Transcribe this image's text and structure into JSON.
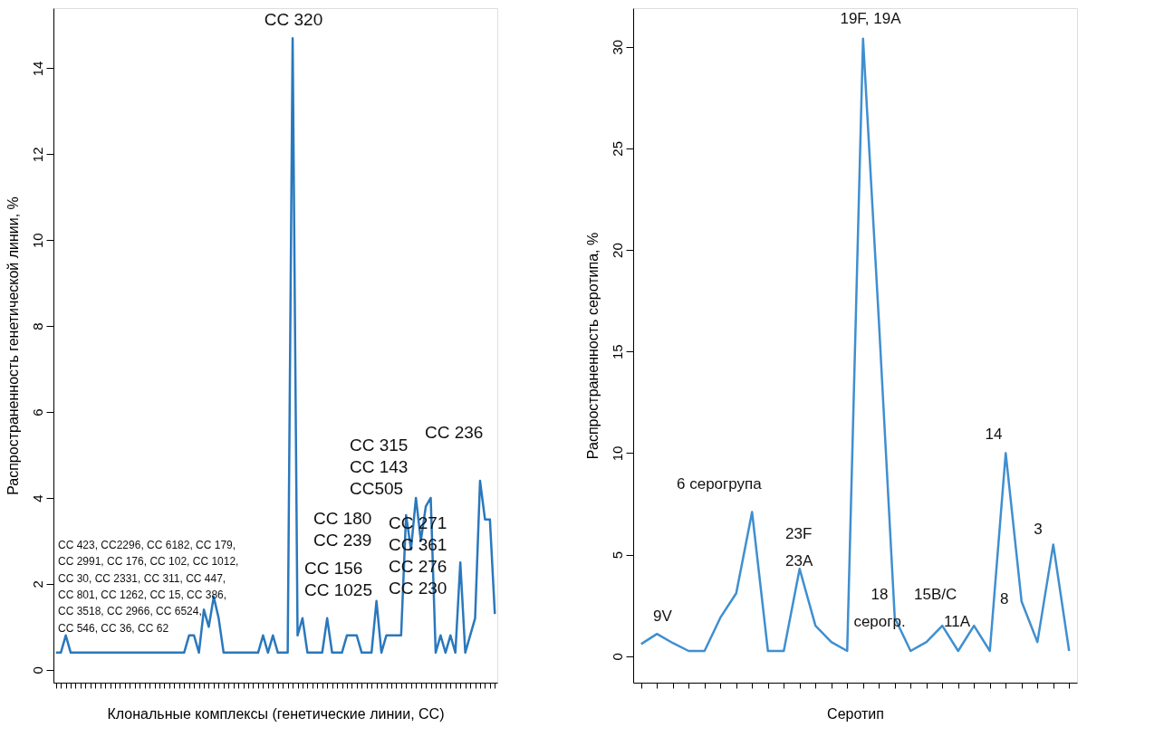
{
  "chart_data": [
    {
      "type": "line",
      "xlabel": "Клональные комплексы (генетические линии, СС)",
      "ylabel": "Распространенность генетической линии, %",
      "categories": [
        null,
        null,
        null,
        null,
        null,
        null,
        null,
        null,
        null,
        null,
        null,
        null,
        null,
        null,
        null,
        null,
        null,
        null,
        null,
        null,
        null,
        null,
        null,
        null,
        null,
        null,
        null,
        null,
        null,
        null,
        null,
        null,
        null,
        null,
        null,
        null,
        null,
        null,
        null,
        null,
        null,
        null,
        null,
        null,
        null,
        null,
        null,
        null,
        null,
        null,
        null,
        null,
        null,
        null,
        null,
        null,
        null,
        null,
        null,
        null,
        null,
        null,
        null,
        null,
        null,
        null,
        null,
        null,
        null,
        null,
        null,
        null,
        null,
        null,
        null,
        null,
        null,
        null,
        null,
        null,
        null,
        null,
        null,
        null,
        null,
        null,
        null,
        null,
        null,
        null
      ],
      "series": [
        {
          "color": "#2a78bd",
          "values": [
            0.4,
            0.4,
            0.8,
            0.4,
            0.4,
            0.4,
            0.4,
            0.4,
            0.4,
            0.4,
            0.4,
            0.4,
            0.4,
            0.4,
            0.4,
            0.4,
            0.4,
            0.4,
            0.4,
            0.4,
            0.4,
            0.4,
            0.4,
            0.4,
            0.4,
            0.4,
            0.4,
            0.8,
            0.8,
            0.4,
            1.4,
            1.0,
            1.7,
            1.2,
            0.4,
            0.4,
            0.4,
            0.4,
            0.4,
            0.4,
            0.4,
            0.4,
            0.8,
            0.4,
            0.8,
            0.4,
            0.4,
            0.4,
            14.7,
            0.8,
            1.2,
            0.4,
            0.4,
            0.4,
            0.4,
            1.2,
            0.4,
            0.4,
            0.4,
            0.8,
            0.8,
            0.8,
            0.4,
            0.4,
            0.4,
            1.6,
            0.4,
            0.8,
            0.8,
            0.8,
            0.8,
            3.6,
            2.8,
            4.0,
            3.0,
            3.8,
            4.0,
            0.4,
            0.8,
            0.4,
            0.8,
            0.4,
            2.5,
            0.4,
            0.8,
            1.2,
            4.4,
            3.5,
            3.5,
            1.3
          ]
        }
      ],
      "ylim": [
        -0.3,
        15.4
      ],
      "yticks": [
        0,
        2,
        4,
        6,
        8,
        10,
        12,
        14
      ],
      "tick_labels": "y",
      "grid": false,
      "annotations": [
        "CC 320",
        "CC 315\nCC 143\nCC505",
        "CC 236",
        "CC 180\nCC 239",
        "CC 156\nCC 1025",
        "CC 271\nCC 361\nCC 276\nCC 230",
        "CC 423, CC2296, CC 6182, CC 179,\nCC 2991, CC 176, CC 102, CC 1012,\nCC 30, CC 2331, CC 311, CC 447,\nCC 801, CC 1262, CC 15, CC 386,\nCC 3518, CC 2966, CC 6524,\nCC 546, CC 36, CC 62"
      ]
    },
    {
      "type": "line",
      "xlabel": "Серотип",
      "ylabel": "Распространенность серотипа, %",
      "categories": [
        null,
        null,
        null,
        null,
        null,
        null,
        null,
        null,
        null,
        null,
        null,
        null,
        null,
        null,
        null,
        null,
        null,
        null,
        null,
        null,
        null,
        null,
        null,
        null,
        null,
        null,
        null,
        null
      ],
      "series": [
        {
          "color": "#3f8fd0",
          "values": [
            0.6,
            1.1,
            0.65,
            0.26,
            0.26,
            1.9,
            3.1,
            7.1,
            0.26,
            0.26,
            4.3,
            1.5,
            0.7,
            0.26,
            30.4,
            16.5,
            1.9,
            0.26,
            0.7,
            1.5,
            0.26,
            1.5,
            0.26,
            10.0,
            2.7,
            0.7,
            5.5,
            0.26
          ]
        }
      ],
      "ylim": [
        -1.3,
        31.9
      ],
      "yticks": [
        0,
        5,
        10,
        15,
        20,
        25,
        30
      ],
      "tick_labels": "y",
      "grid": false,
      "annotations": [
        "19F, 19A",
        "6 серогрупа",
        "23F\n23A",
        "9V",
        "18\nсерогр.",
        "15B/C",
        "11A",
        "8",
        "14",
        "3"
      ]
    }
  ]
}
